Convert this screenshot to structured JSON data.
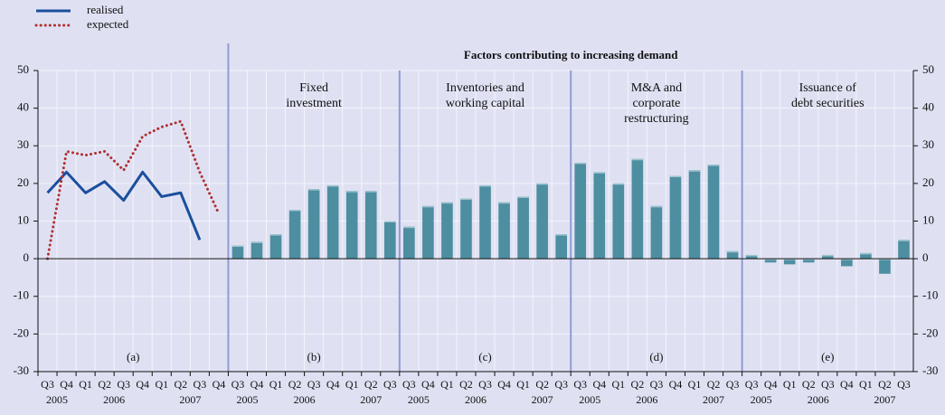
{
  "chart_data": {
    "type": "panels",
    "title": "Factors contributing to increasing demand",
    "ylim": [
      -30,
      50
    ],
    "yticks": [
      -30,
      -20,
      -10,
      0,
      10,
      20,
      30,
      40,
      50
    ],
    "grid": true,
    "legend": "top-left",
    "panels": [
      {
        "type": "line",
        "label": "(a)",
        "categories": [
          "Q3",
          "Q4",
          "Q1",
          "Q2",
          "Q3",
          "Q4",
          "Q1",
          "Q2",
          "Q3",
          "Q4"
        ],
        "years": [
          "2005",
          "2006",
          "2007"
        ],
        "series": [
          {
            "name": "realised",
            "color": "#1b4f9c",
            "style": "solid",
            "values": [
              17.5,
              23,
              17.5,
              20.5,
              15.5,
              23,
              16.5,
              17.5,
              5,
              null
            ]
          },
          {
            "name": "expected",
            "color": "#b03030",
            "style": "dotted",
            "values": [
              0,
              28.5,
              27.5,
              28.5,
              23.5,
              32.5,
              35,
              36.5,
              23,
              12
            ]
          }
        ]
      },
      {
        "type": "bar",
        "label": "(b)",
        "title": [
          "Fixed",
          "investment"
        ],
        "color": "#4d8ea0",
        "categories": [
          "Q3",
          "Q4",
          "Q1",
          "Q2",
          "Q3",
          "Q4",
          "Q1",
          "Q2",
          "Q3"
        ],
        "years": [
          "2005",
          "2006",
          "2007"
        ],
        "values": [
          3.5,
          4.5,
          6.5,
          13,
          18.5,
          19.5,
          18,
          18,
          10
        ]
      },
      {
        "type": "bar",
        "label": "(c)",
        "title": [
          "Inventories and",
          "working capital"
        ],
        "color": "#4d8ea0",
        "categories": [
          "Q3",
          "Q4",
          "Q1",
          "Q2",
          "Q3",
          "Q4",
          "Q1",
          "Q2",
          "Q3"
        ],
        "years": [
          "2005",
          "2006",
          "2007"
        ],
        "values": [
          8.5,
          14,
          15,
          16,
          19.5,
          15,
          16.5,
          20,
          6.5
        ]
      },
      {
        "type": "bar",
        "label": "(d)",
        "title": [
          "M&A and",
          "corporate",
          "restructuring"
        ],
        "color": "#4d8ea0",
        "categories": [
          "Q3",
          "Q4",
          "Q1",
          "Q2",
          "Q3",
          "Q4",
          "Q1",
          "Q2",
          "Q3"
        ],
        "years": [
          "2005",
          "2006",
          "2007"
        ],
        "values": [
          25.5,
          23,
          20,
          26.5,
          14,
          22,
          23.5,
          25,
          2
        ]
      },
      {
        "type": "bar",
        "label": "(e)",
        "title": [
          "Issuance of",
          "debt securities"
        ],
        "color": "#4d8ea0",
        "categories": [
          "Q3",
          "Q4",
          "Q1",
          "Q2",
          "Q3",
          "Q4",
          "Q1",
          "Q2",
          "Q3"
        ],
        "years": [
          "2005",
          "2006",
          "2007"
        ],
        "values": [
          1,
          -1,
          -1.5,
          -1,
          1,
          -2,
          1.5,
          -4,
          5
        ]
      }
    ]
  }
}
